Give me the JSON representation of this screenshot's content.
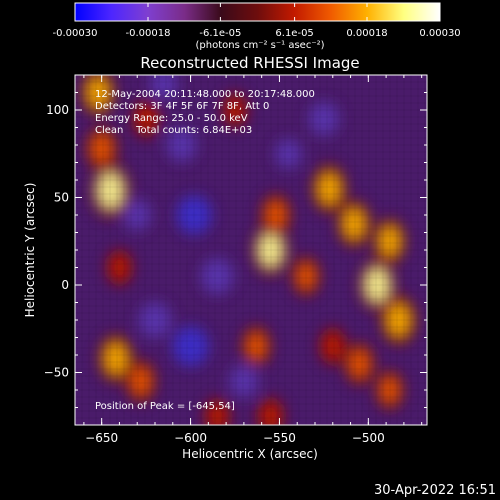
{
  "chart_data": {
    "type": "heatmap",
    "title": "Reconstructed RHESSI Image",
    "xlabel": "Heliocentric X (arcsec)",
    "ylabel": "Heliocentric Y (arcsec)",
    "xlim": [
      -665,
      -467
    ],
    "ylim": [
      -80,
      120
    ],
    "xticks": [
      -650,
      -600,
      -550,
      -500
    ],
    "yticks": [
      -50,
      0,
      50,
      100
    ],
    "grid": false,
    "colorbar": {
      "position": "top",
      "range": [
        -0.0003,
        0.0003
      ],
      "tick_labels": [
        "-0.00030",
        "-0.00018",
        "-6.1e-05",
        "6.1e-05",
        "0.00018",
        "0.00030"
      ],
      "tick_values": [
        -0.0003,
        -0.00018,
        -6.1e-05,
        6.1e-05,
        0.00018,
        0.0003
      ],
      "units_label": "(photons cm⁻² s⁻¹ asec⁻²)",
      "colormap": [
        "#0000ff",
        "#4d26ff",
        "#7f3fd0",
        "#7a2c88",
        "#3a0a1a",
        "#6e0d0d",
        "#c21a00",
        "#f05a00",
        "#ffb000",
        "#ffff80",
        "#ffffff"
      ]
    },
    "annotations": [
      "12-May-2004 20:11:48.000 to 20:17:48.000",
      "Detectors: 3F 4F 5F 6F 7F 8F, Att 0",
      "Energy Range: 25.0 - 50.0 keV",
      "Clean    Total counts: 6.84E+03"
    ],
    "peak_label": "Position of Peak = [-645,54]",
    "peak": [
      -645,
      54
    ],
    "hot_spots": [
      {
        "x": -645,
        "y": 54,
        "level": 1.0
      },
      {
        "x": -652,
        "y": 110,
        "level": 0.75
      },
      {
        "x": -650,
        "y": 78,
        "level": 0.65
      },
      {
        "x": -642,
        "y": -42,
        "level": 0.8
      },
      {
        "x": -628,
        "y": -55,
        "level": 0.6
      },
      {
        "x": -625,
        "y": 95,
        "level": 0.45
      },
      {
        "x": -555,
        "y": 20,
        "level": 0.9
      },
      {
        "x": -552,
        "y": 40,
        "level": 0.6
      },
      {
        "x": -563,
        "y": -35,
        "level": 0.55
      },
      {
        "x": -522,
        "y": 55,
        "level": 0.8
      },
      {
        "x": -508,
        "y": 35,
        "level": 0.75
      },
      {
        "x": -495,
        "y": 0,
        "level": 0.9
      },
      {
        "x": -483,
        "y": -20,
        "level": 0.85
      },
      {
        "x": -488,
        "y": 25,
        "level": 0.7
      },
      {
        "x": -505,
        "y": -45,
        "level": 0.6
      },
      {
        "x": -520,
        "y": -35,
        "level": 0.45
      },
      {
        "x": -535,
        "y": 5,
        "level": 0.5
      },
      {
        "x": -585,
        "y": -75,
        "level": 0.4
      },
      {
        "x": -555,
        "y": -75,
        "level": 0.45
      },
      {
        "x": -640,
        "y": 10,
        "level": 0.4
      },
      {
        "x": -575,
        "y": 100,
        "level": 0.35
      },
      {
        "x": -488,
        "y": -60,
        "level": 0.5
      }
    ],
    "cold_spots": [
      {
        "x": -598,
        "y": 40,
        "level": 0.8
      },
      {
        "x": -585,
        "y": 5,
        "level": 0.7
      },
      {
        "x": -600,
        "y": -35,
        "level": 0.85
      },
      {
        "x": -620,
        "y": -20,
        "level": 0.7
      },
      {
        "x": -525,
        "y": 95,
        "level": 0.6
      },
      {
        "x": -605,
        "y": 80,
        "level": 0.6
      },
      {
        "x": -570,
        "y": -55,
        "level": 0.55
      },
      {
        "x": -545,
        "y": 75,
        "level": 0.45
      },
      {
        "x": -630,
        "y": 40,
        "level": 0.5
      },
      {
        "x": -615,
        "y": 115,
        "level": 0.5
      }
    ]
  },
  "footer": {
    "timestamp": "30-Apr-2022 16:51"
  }
}
